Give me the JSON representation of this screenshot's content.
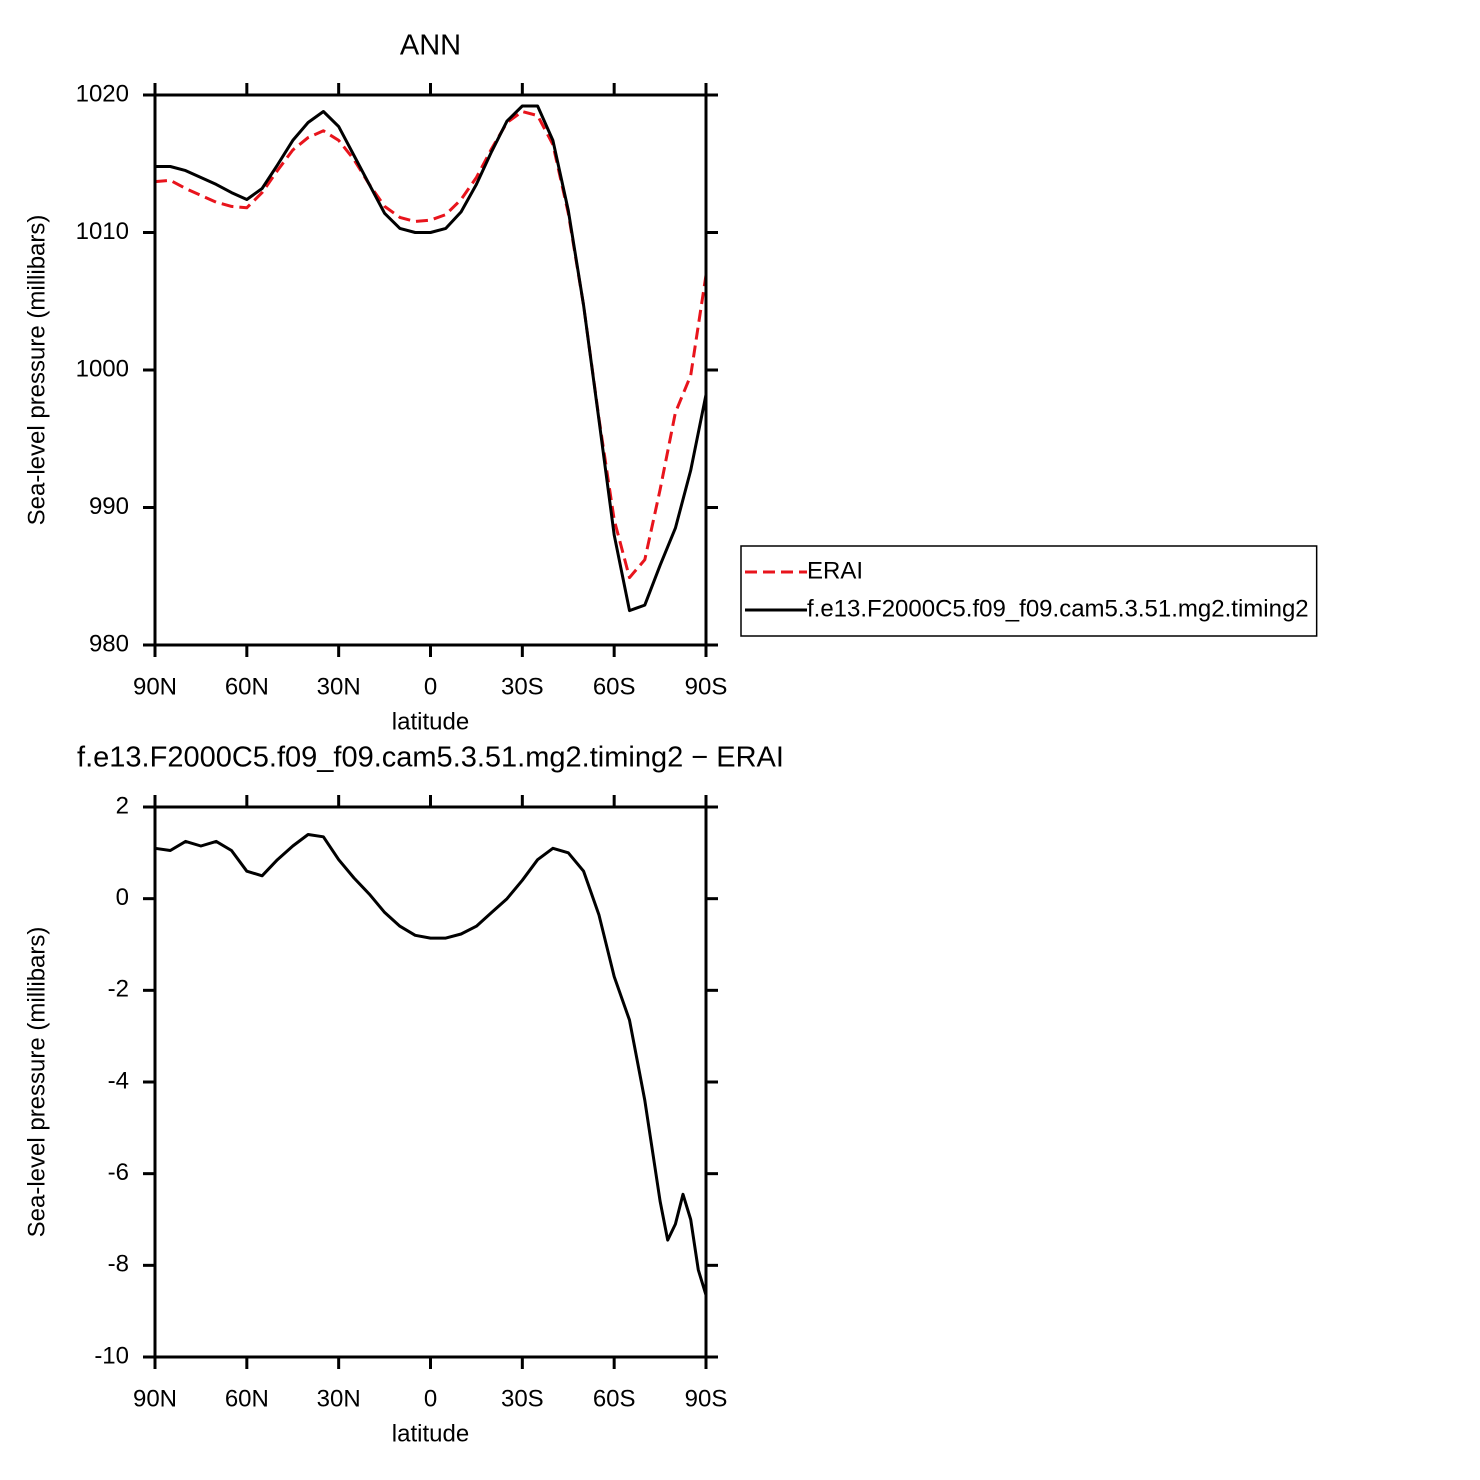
{
  "chart_data": [
    {
      "type": "line",
      "title": "ANN",
      "xlabel": "latitude",
      "ylabel": "Sea-level pressure (millibars)",
      "x": [
        90,
        85,
        80,
        75,
        70,
        65,
        60,
        55,
        50,
        45,
        40,
        35,
        30,
        25,
        20,
        15,
        10,
        5,
        0,
        -5,
        -10,
        -15,
        -20,
        -25,
        -30,
        -35,
        -40,
        -45,
        -50,
        -55,
        -60,
        -65,
        -70,
        -75,
        -80,
        -85,
        -90
      ],
      "xlim": [
        90,
        -90
      ],
      "xticks": [
        {
          "value": 90,
          "label": "90N"
        },
        {
          "value": 60,
          "label": "60N"
        },
        {
          "value": 30,
          "label": "30N"
        },
        0,
        {
          "value": -30,
          "label": "30S"
        },
        {
          "value": -60,
          "label": "60S"
        },
        {
          "value": -90,
          "label": "90S"
        }
      ],
      "ylim": [
        980,
        1020
      ],
      "yticks": [
        980,
        990,
        1000,
        1010,
        1020
      ],
      "legend": "right",
      "series": [
        {
          "name": "ERAI",
          "color": "#e8141c",
          "style": "dashed",
          "values": [
            1013.7,
            1013.8,
            1013.2,
            1012.7,
            1012.2,
            1011.9,
            1011.8,
            1012.9,
            1014.5,
            1016.0,
            1016.9,
            1017.4,
            1016.7,
            1015.3,
            1013.5,
            1011.9,
            1011.1,
            1010.8,
            1010.9,
            1011.3,
            1012.4,
            1014.0,
            1016.1,
            1018.0,
            1018.8,
            1018.5,
            1016.4,
            1011.4,
            1004.7,
            996.5,
            989.1,
            984.9,
            986.2,
            991.3,
            996.9,
            999.6,
            1006.9
          ]
        },
        {
          "name": "f.e13.F2000C5.f09_f09.cam5.3.51.mg2.timing2",
          "color": "#000000",
          "style": "solid",
          "values": [
            1014.8,
            1014.8,
            1014.5,
            1014.0,
            1013.5,
            1012.9,
            1012.4,
            1013.2,
            1014.9,
            1016.7,
            1018.0,
            1018.8,
            1017.7,
            1015.6,
            1013.5,
            1011.4,
            1010.3,
            1010.0,
            1010.0,
            1010.3,
            1011.5,
            1013.5,
            1015.9,
            1018.1,
            1019.2,
            1019.2,
            1016.7,
            1011.6,
            1004.7,
            996.4,
            988.0,
            982.5,
            982.9,
            985.8,
            988.5,
            992.7,
            998.2
          ]
        }
      ]
    },
    {
      "type": "line",
      "title": "f.e13.F2000C5.f09_f09.cam5.3.51.mg2.timing2 − ERAI",
      "xlabel": "latitude",
      "ylabel": "Sea-level pressure (millibars)",
      "x": [
        90,
        85,
        80,
        75,
        70,
        65,
        60,
        55,
        50,
        45,
        40,
        35,
        30,
        25,
        20,
        15,
        10,
        5,
        0,
        -5,
        -10,
        -15,
        -20,
        -25,
        -30,
        -35,
        -40,
        -45,
        -50,
        -55,
        -60,
        -65,
        -70,
        -75,
        -77.5,
        -80,
        -82.5,
        -85,
        -87.5,
        -90
      ],
      "xlim": [
        90,
        -90
      ],
      "xticks": [
        {
          "value": 90,
          "label": "90N"
        },
        {
          "value": 60,
          "label": "60N"
        },
        {
          "value": 30,
          "label": "30N"
        },
        0,
        {
          "value": -30,
          "label": "30S"
        },
        {
          "value": -60,
          "label": "60S"
        },
        {
          "value": -90,
          "label": "90S"
        }
      ],
      "ylim": [
        -10,
        2
      ],
      "yticks": [
        -10,
        -8,
        -6,
        -4,
        -2,
        0,
        2
      ],
      "series": [
        {
          "color": "#000000",
          "style": "solid",
          "values": [
            1.1,
            1.05,
            1.25,
            1.15,
            1.25,
            1.05,
            0.6,
            0.5,
            0.85,
            1.15,
            1.4,
            1.35,
            0.85,
            0.45,
            0.1,
            -0.3,
            -0.6,
            -0.8,
            -0.86,
            -0.86,
            -0.77,
            -0.6,
            -0.3,
            0.0,
            0.4,
            0.85,
            1.1,
            1.0,
            0.6,
            -0.35,
            -1.7,
            -2.65,
            -4.4,
            -6.6,
            -7.45,
            -7.1,
            -6.45,
            -7.0,
            -8.1,
            -8.65
          ]
        }
      ]
    }
  ]
}
